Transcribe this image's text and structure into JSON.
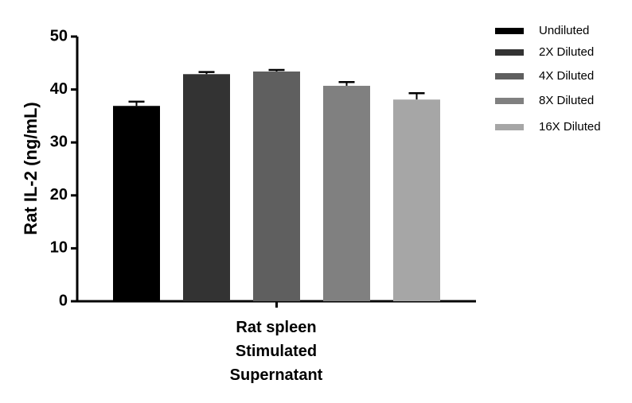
{
  "chart_data": {
    "type": "bar",
    "y_label": "Rat IL-2 (ng/mL)",
    "categories": [
      "Rat spleen\nStimulated\nSupernatant"
    ],
    "series": [
      {
        "name": "Undiluted",
        "color": "#000000",
        "values": [
          36.9
        ],
        "errors": [
          0.8
        ]
      },
      {
        "name": "2X Diluted",
        "color": "#333333",
        "values": [
          42.9
        ],
        "errors": [
          0.4
        ]
      },
      {
        "name": "4X Diluted",
        "color": "#5f5f5f",
        "values": [
          43.4
        ],
        "errors": [
          0.3
        ]
      },
      {
        "name": "8X Diluted",
        "color": "#808080",
        "values": [
          40.7
        ],
        "errors": [
          0.7
        ]
      },
      {
        "name": "16X Diluted",
        "color": "#a6a6a6",
        "values": [
          38.1
        ],
        "errors": [
          1.2
        ]
      }
    ],
    "ylim": [
      0,
      50
    ],
    "yticks": [
      0,
      10,
      20,
      30,
      40,
      50
    ]
  }
}
